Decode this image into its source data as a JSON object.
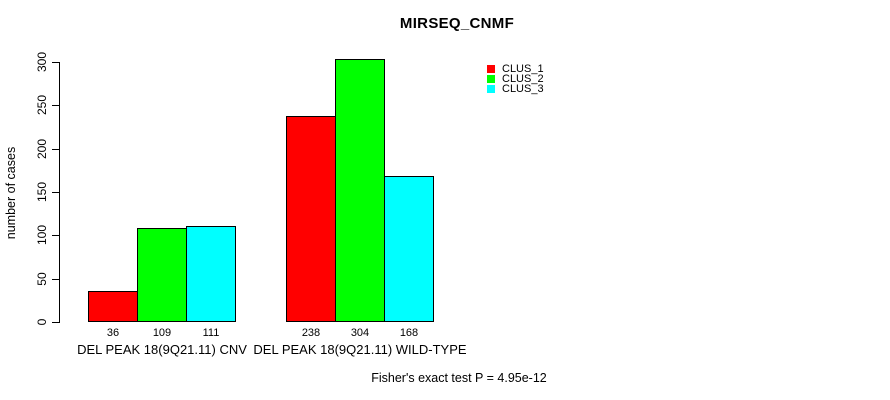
{
  "chart_data": {
    "type": "bar",
    "grouped": true,
    "title": "MIRSEQ_CNMF",
    "categories": [
      "DEL PEAK 18(9Q21.11) CNV",
      "DEL PEAK 18(9Q21.11) WILD-TYPE"
    ],
    "series": [
      {
        "name": "CLUS_1",
        "color": "#FF0000",
        "values": [
          36,
          238
        ]
      },
      {
        "name": "CLUS_2",
        "color": "#00FF00",
        "values": [
          109,
          304
        ]
      },
      {
        "name": "CLUS_3",
        "color": "#00FFFF",
        "values": [
          111,
          168
        ]
      }
    ],
    "xlabel": "",
    "ylabel": "number of cases",
    "ylim": [
      0,
      300
    ],
    "yticks": [
      0,
      50,
      100,
      150,
      200,
      250,
      300
    ],
    "bar_value_labels_shown": true,
    "grid": false,
    "legend_position": "top-right",
    "annotation": "Fisher's exact test P = 4.95e-12",
    "axis_color": "#000000",
    "background_color": "#FFFFFF"
  }
}
